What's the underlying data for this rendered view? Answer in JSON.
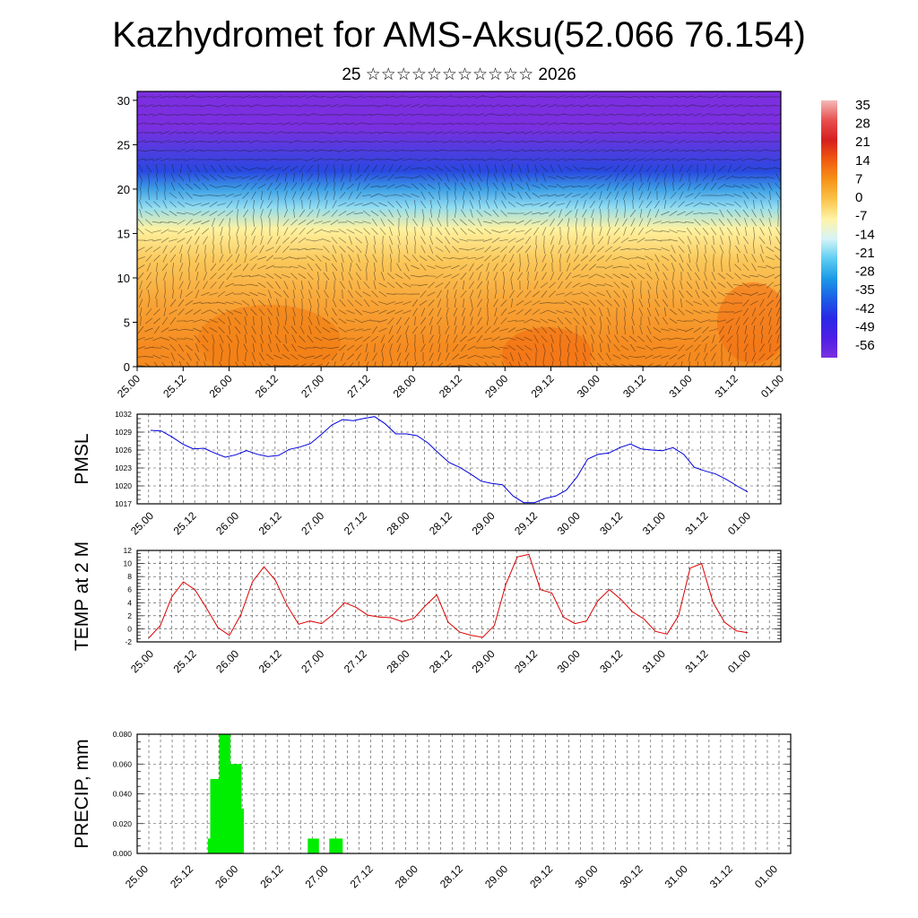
{
  "title": "Kazhydromet for AMS-Aksu(52.066 76.154)",
  "subtitle": "25 ☆☆☆☆☆☆☆☆☆☆☆ 2026",
  "time_labels": [
    "25.00",
    "25.12",
    "26.00",
    "26.12",
    "27.00",
    "27.12",
    "28.00",
    "28.12",
    "29.00",
    "29.12",
    "30.00",
    "30.12",
    "31.00",
    "31.12",
    "01.00"
  ],
  "chart_data": [
    {
      "type": "heatmap",
      "name": "cross-section",
      "description_of_overlay": "wind vectors",
      "y_ticks": [
        0,
        5,
        10,
        15,
        20,
        25,
        30
      ],
      "ylim": [
        0,
        31
      ],
      "colorbar": {
        "labels": [
          "35",
          "28",
          "21",
          "14",
          "7",
          "0",
          "-7",
          "-14",
          "-21",
          "-28",
          "-35",
          "-42",
          "-49",
          "-56"
        ],
        "colors": [
          "#f4b9b9",
          "#e85050",
          "#d61e1e",
          "#f05a10",
          "#f79318",
          "#fbc34a",
          "#fff4a8",
          "#d6f4f7",
          "#5fcdf2",
          "#1c9ae6",
          "#1c5ee6",
          "#2828e6",
          "#4e1ee6",
          "#7a30e0"
        ]
      },
      "zones": [
        {
          "from": 0,
          "to": 4,
          "color": "#f58a1f"
        },
        {
          "from": 4,
          "to": 10,
          "color": "#f8a335"
        },
        {
          "from": 10,
          "to": 14,
          "color": "#fbc85a"
        },
        {
          "from": 14,
          "to": 17,
          "color": "#fff2a0"
        },
        {
          "from": 17,
          "to": 19,
          "color": "#8fdcf2"
        },
        {
          "from": 19,
          "to": 21,
          "color": "#3d9fe6"
        },
        {
          "from": 21,
          "to": 23,
          "color": "#2848e0"
        },
        {
          "from": 23,
          "to": 31,
          "color": "#7b2fe0"
        }
      ]
    },
    {
      "type": "line",
      "name": "PMSL",
      "ylabel": "PMSL",
      "color": "#0000dd",
      "ylim": [
        1017,
        1032
      ],
      "y_ticks": [
        1017,
        1020,
        1023,
        1026,
        1029,
        1032
      ],
      "values": [
        1029.3,
        1029.2,
        1028.2,
        1027.0,
        1026.2,
        1026.3,
        1025.5,
        1024.8,
        1025.2,
        1025.9,
        1025.3,
        1024.9,
        1025.1,
        1026.1,
        1026.5,
        1027.1,
        1028.6,
        1030.2,
        1031.1,
        1030.9,
        1031.3,
        1031.6,
        1030.4,
        1028.7,
        1028.7,
        1028.4,
        1027.2,
        1025.5,
        1023.9,
        1023.1,
        1022.0,
        1020.8,
        1020.4,
        1020.2,
        1018.3,
        1017.2,
        1017.2,
        1017.9,
        1018.3,
        1019.3,
        1021.5,
        1024.5,
        1025.3,
        1025.5,
        1026.4,
        1027.0,
        1026.2,
        1026.0,
        1025.9,
        1026.4,
        1025.3,
        1023.1,
        1022.5,
        1022.0,
        1021.1,
        1020.0,
        1019.0
      ]
    },
    {
      "type": "line",
      "name": "TEMP at 2 M",
      "ylabel": "TEMP at 2 M",
      "color": "#dd0000",
      "ylim": [
        -2,
        12
      ],
      "y_ticks": [
        -2,
        0,
        2,
        4,
        6,
        8,
        10,
        12
      ],
      "values": [
        -1.4,
        0.5,
        4.9,
        7.2,
        6.0,
        3.2,
        0.2,
        -1.0,
        2.2,
        7.2,
        9.5,
        7.4,
        3.6,
        0.7,
        1.2,
        0.8,
        2.2,
        4.0,
        3.3,
        2.1,
        1.8,
        1.7,
        1.1,
        1.6,
        3.5,
        5.2,
        1.0,
        -0.5,
        -1.0,
        -1.3,
        0.5,
        6.8,
        11.0,
        11.4,
        6.0,
        5.5,
        1.8,
        0.8,
        1.2,
        4.3,
        6.0,
        4.5,
        2.6,
        1.5,
        -0.4,
        -0.8,
        2.0,
        9.3,
        10.0,
        4.0,
        1.0,
        -0.3,
        -0.6
      ]
    },
    {
      "type": "bar",
      "name": "PRECIP, mm",
      "ylabel": "PRECIP, mm",
      "color": "#00ee00",
      "ylim": [
        0,
        0.08
      ],
      "y_ticks": [
        "0.000",
        "0.020",
        "0.040",
        "0.060",
        "0.080"
      ],
      "bars": [
        {
          "t": 1.52,
          "v": 0.01
        },
        {
          "t": 1.57,
          "v": 0.05
        },
        {
          "t": 1.62,
          "v": 0.01
        },
        {
          "t": 1.67,
          "v": 0.04
        },
        {
          "t": 1.72,
          "v": 0.02
        },
        {
          "t": 1.77,
          "v": 0.08
        },
        {
          "t": 1.82,
          "v": 0.06
        },
        {
          "t": 1.87,
          "v": 0.05
        },
        {
          "t": 1.92,
          "v": 0.03
        },
        {
          "t": 1.97,
          "v": 0.02
        },
        {
          "t": 2.02,
          "v": 0.06
        },
        {
          "t": 2.07,
          "v": 0.03
        },
        {
          "t": 3.74,
          "v": 0.01
        },
        {
          "t": 4.22,
          "v": 0.01
        },
        {
          "t": 4.27,
          "v": 0.01
        }
      ]
    }
  ]
}
